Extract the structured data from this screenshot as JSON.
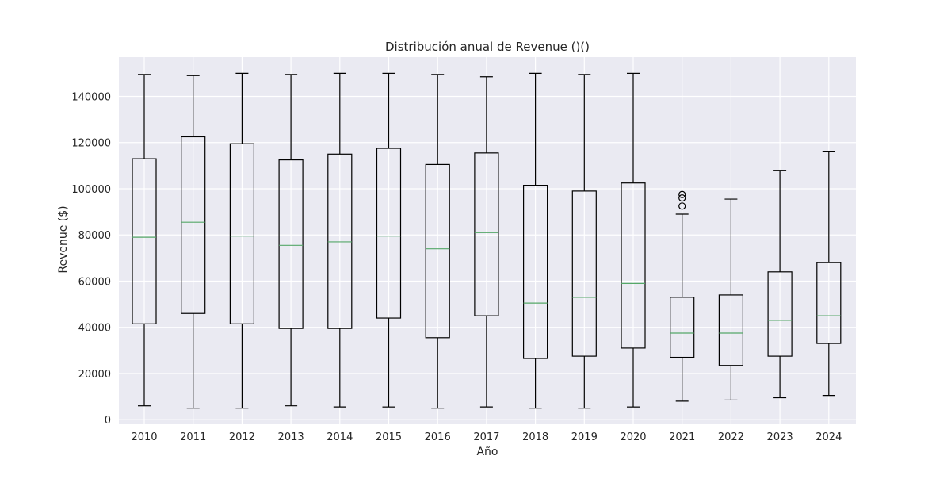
{
  "chart_data": {
    "type": "box",
    "title": "Distribución anual de Revenue ()()",
    "xlabel": "Año",
    "ylabel": "Revenue ($)",
    "ylim": [
      -2000,
      157000
    ],
    "yticks": [
      0,
      20000,
      40000,
      60000,
      80000,
      100000,
      120000,
      140000
    ],
    "grid": true,
    "legend": "none",
    "colors": {
      "background": "#EAEAF2",
      "grid": "#FFFFFF",
      "box": "#000000",
      "median": "#55A868"
    },
    "categories": [
      "2010",
      "2011",
      "2012",
      "2013",
      "2014",
      "2015",
      "2016",
      "2017",
      "2018",
      "2019",
      "2020",
      "2021",
      "2022",
      "2023",
      "2024"
    ],
    "boxes": [
      {
        "min": 6000,
        "q1": 41500,
        "median": 79000,
        "q3": 113000,
        "max": 149500,
        "outliers": []
      },
      {
        "min": 5000,
        "q1": 46000,
        "median": 85500,
        "q3": 122500,
        "max": 149000,
        "outliers": []
      },
      {
        "min": 5000,
        "q1": 41500,
        "median": 79500,
        "q3": 119500,
        "max": 150000,
        "outliers": []
      },
      {
        "min": 6000,
        "q1": 39500,
        "median": 75500,
        "q3": 112500,
        "max": 149500,
        "outliers": []
      },
      {
        "min": 5500,
        "q1": 39500,
        "median": 77000,
        "q3": 115000,
        "max": 150000,
        "outliers": []
      },
      {
        "min": 5500,
        "q1": 44000,
        "median": 79500,
        "q3": 117500,
        "max": 150000,
        "outliers": []
      },
      {
        "min": 5000,
        "q1": 35500,
        "median": 74000,
        "q3": 110500,
        "max": 149500,
        "outliers": []
      },
      {
        "min": 5500,
        "q1": 45000,
        "median": 81000,
        "q3": 115500,
        "max": 148500,
        "outliers": []
      },
      {
        "min": 5000,
        "q1": 26500,
        "median": 50500,
        "q3": 101500,
        "max": 150000,
        "outliers": []
      },
      {
        "min": 5000,
        "q1": 27500,
        "median": 53000,
        "q3": 99000,
        "max": 149500,
        "outliers": []
      },
      {
        "min": 5500,
        "q1": 31000,
        "median": 59000,
        "q3": 102500,
        "max": 150000,
        "outliers": []
      },
      {
        "min": 8000,
        "q1": 27000,
        "median": 37500,
        "q3": 53000,
        "max": 89000,
        "outliers": [
          92500,
          96000,
          97500
        ]
      },
      {
        "min": 8500,
        "q1": 23500,
        "median": 37500,
        "q3": 54000,
        "max": 95500,
        "outliers": []
      },
      {
        "min": 9500,
        "q1": 27500,
        "median": 43000,
        "q3": 64000,
        "max": 108000,
        "outliers": []
      },
      {
        "min": 10500,
        "q1": 33000,
        "median": 45000,
        "q3": 68000,
        "max": 116000,
        "outliers": []
      }
    ]
  }
}
